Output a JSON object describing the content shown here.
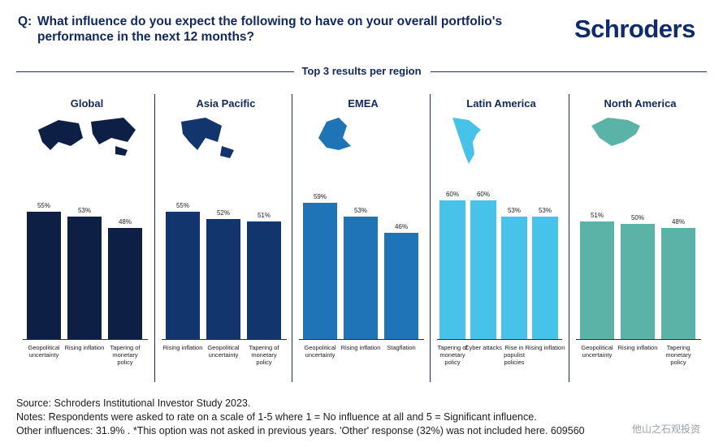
{
  "header": {
    "q_prefix": "Q:",
    "question": "What influence do you expect the following to have on your overall portfolio's performance in the next 12 months?",
    "logo": "Schroders",
    "subtitle": "Top 3 results per region"
  },
  "colors": {
    "Global": "#0d1f45",
    "Asia Pacific": "#12356e",
    "EMEA": "#1f74b8",
    "Latin America": "#47c3ea",
    "North America": "#5bb3a8"
  },
  "chart_data": {
    "type": "bar",
    "title": "Top 3 results per region",
    "ylim": [
      0,
      100
    ],
    "regions": [
      {
        "name": "Global",
        "categories": [
          "Geopolitical uncertainty",
          "Rising inflation",
          "Tapering of monetary policy"
        ],
        "values": [
          55,
          53,
          48
        ],
        "labels": [
          "55%",
          "53%",
          "48%"
        ]
      },
      {
        "name": "Asia Pacific",
        "categories": [
          "Rising inflation",
          "Geopolitical uncertainty",
          "Tapering of monetary policy"
        ],
        "values": [
          55,
          52,
          51
        ],
        "labels": [
          "55%",
          "52%",
          "51%"
        ]
      },
      {
        "name": "EMEA",
        "categories": [
          "Geopolitical uncertainty",
          "Rising inflation",
          "Stagflation"
        ],
        "values": [
          59,
          53,
          46
        ],
        "labels": [
          "59%",
          "53%",
          "46%"
        ]
      },
      {
        "name": "Latin America",
        "categories": [
          "Tapering of monetary policy",
          "Cyber attacks",
          "Rise in populist policies",
          "Rising inflation"
        ],
        "values": [
          60,
          60,
          53,
          53
        ],
        "labels": [
          "60%",
          "60%",
          "53%",
          "53%"
        ]
      },
      {
        "name": "North America",
        "categories": [
          "Geopolitical uncertainty",
          "Rising inflation",
          "Tapering monetary policy"
        ],
        "values": [
          51,
          50,
          48
        ],
        "labels": [
          "51%",
          "50%",
          "48%"
        ]
      }
    ]
  },
  "footer": {
    "source": "Source: Schroders Institutional Investor Study 2023.",
    "notes": "Notes: Respondents were asked to rate on a scale of 1-5 where 1 = No influence at all and 5 = Significant influence.",
    "other": "Other influences: 31.9% . *This option was not asked in previous years. 'Other' response (32%) was not included here. 609560",
    "watermark": "他山之石观投资"
  }
}
